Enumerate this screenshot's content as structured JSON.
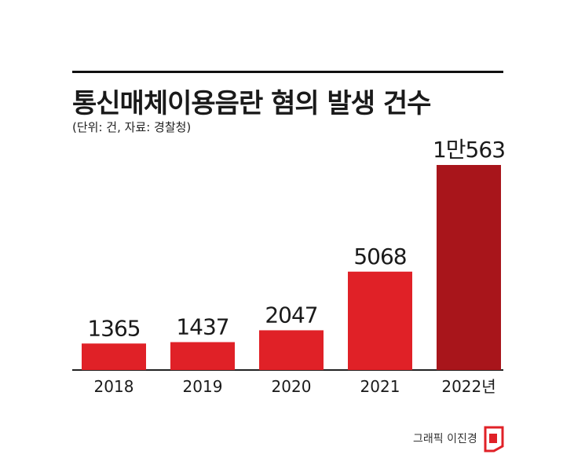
{
  "title": "통신매체이용음란 혐의 발생 건수",
  "subtitle": "(단위: 건, 자료: 경찰청)",
  "credit": "그래픽 이진경",
  "colors": {
    "bar": "#e02127",
    "highlight_bar": "#a8151b",
    "text": "#1a1a1a"
  },
  "chart_data": {
    "type": "bar",
    "title": "통신매체이용음란 혐의 발생 건수",
    "subtitle": "(단위: 건, 자료: 경찰청)",
    "categories": [
      "2018",
      "2019",
      "2020",
      "2021",
      "2022년"
    ],
    "values": [
      1365,
      1437,
      2047,
      5068,
      10563
    ],
    "value_labels": [
      "1365",
      "1437",
      "2047",
      "5068",
      "1만563"
    ],
    "xlabel": "",
    "ylabel": "",
    "ylim": [
      0,
      10563
    ],
    "grid": false,
    "legend": "none"
  }
}
